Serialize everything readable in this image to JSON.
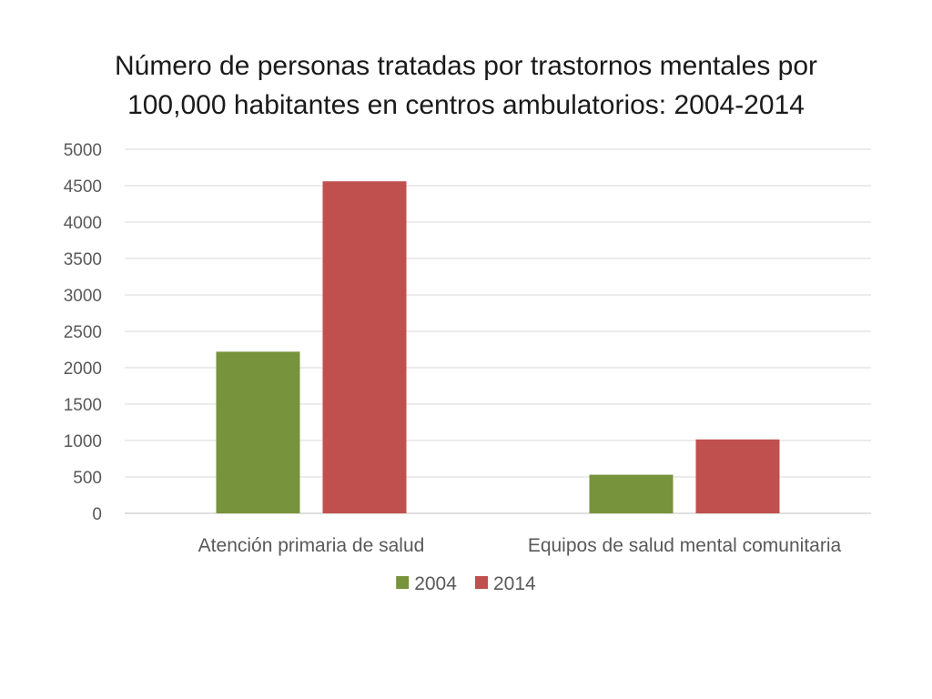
{
  "chart_data": {
    "type": "bar",
    "title_lines": [
      "Número de personas tratadas por trastornos mentales por",
      "100,000 habitantes en centros ambulatorios: 2004-2014"
    ],
    "categories": [
      "Atención primaria de salud",
      "Equipos de salud mental comunitaria"
    ],
    "series": [
      {
        "name": "2004",
        "values": [
          2220,
          530
        ],
        "color": "#77933c"
      },
      {
        "name": "2014",
        "values": [
          4560,
          1015
        ],
        "color": "#c0504d"
      }
    ],
    "yticks": [
      "0",
      "500",
      "1000",
      "1500",
      "2000",
      "2500",
      "3000",
      "3500",
      "4000",
      "4500",
      "5000"
    ],
    "ylim": [
      0,
      5000
    ],
    "grid": true,
    "legend_position": "bottom",
    "xlabel": "",
    "ylabel": ""
  }
}
